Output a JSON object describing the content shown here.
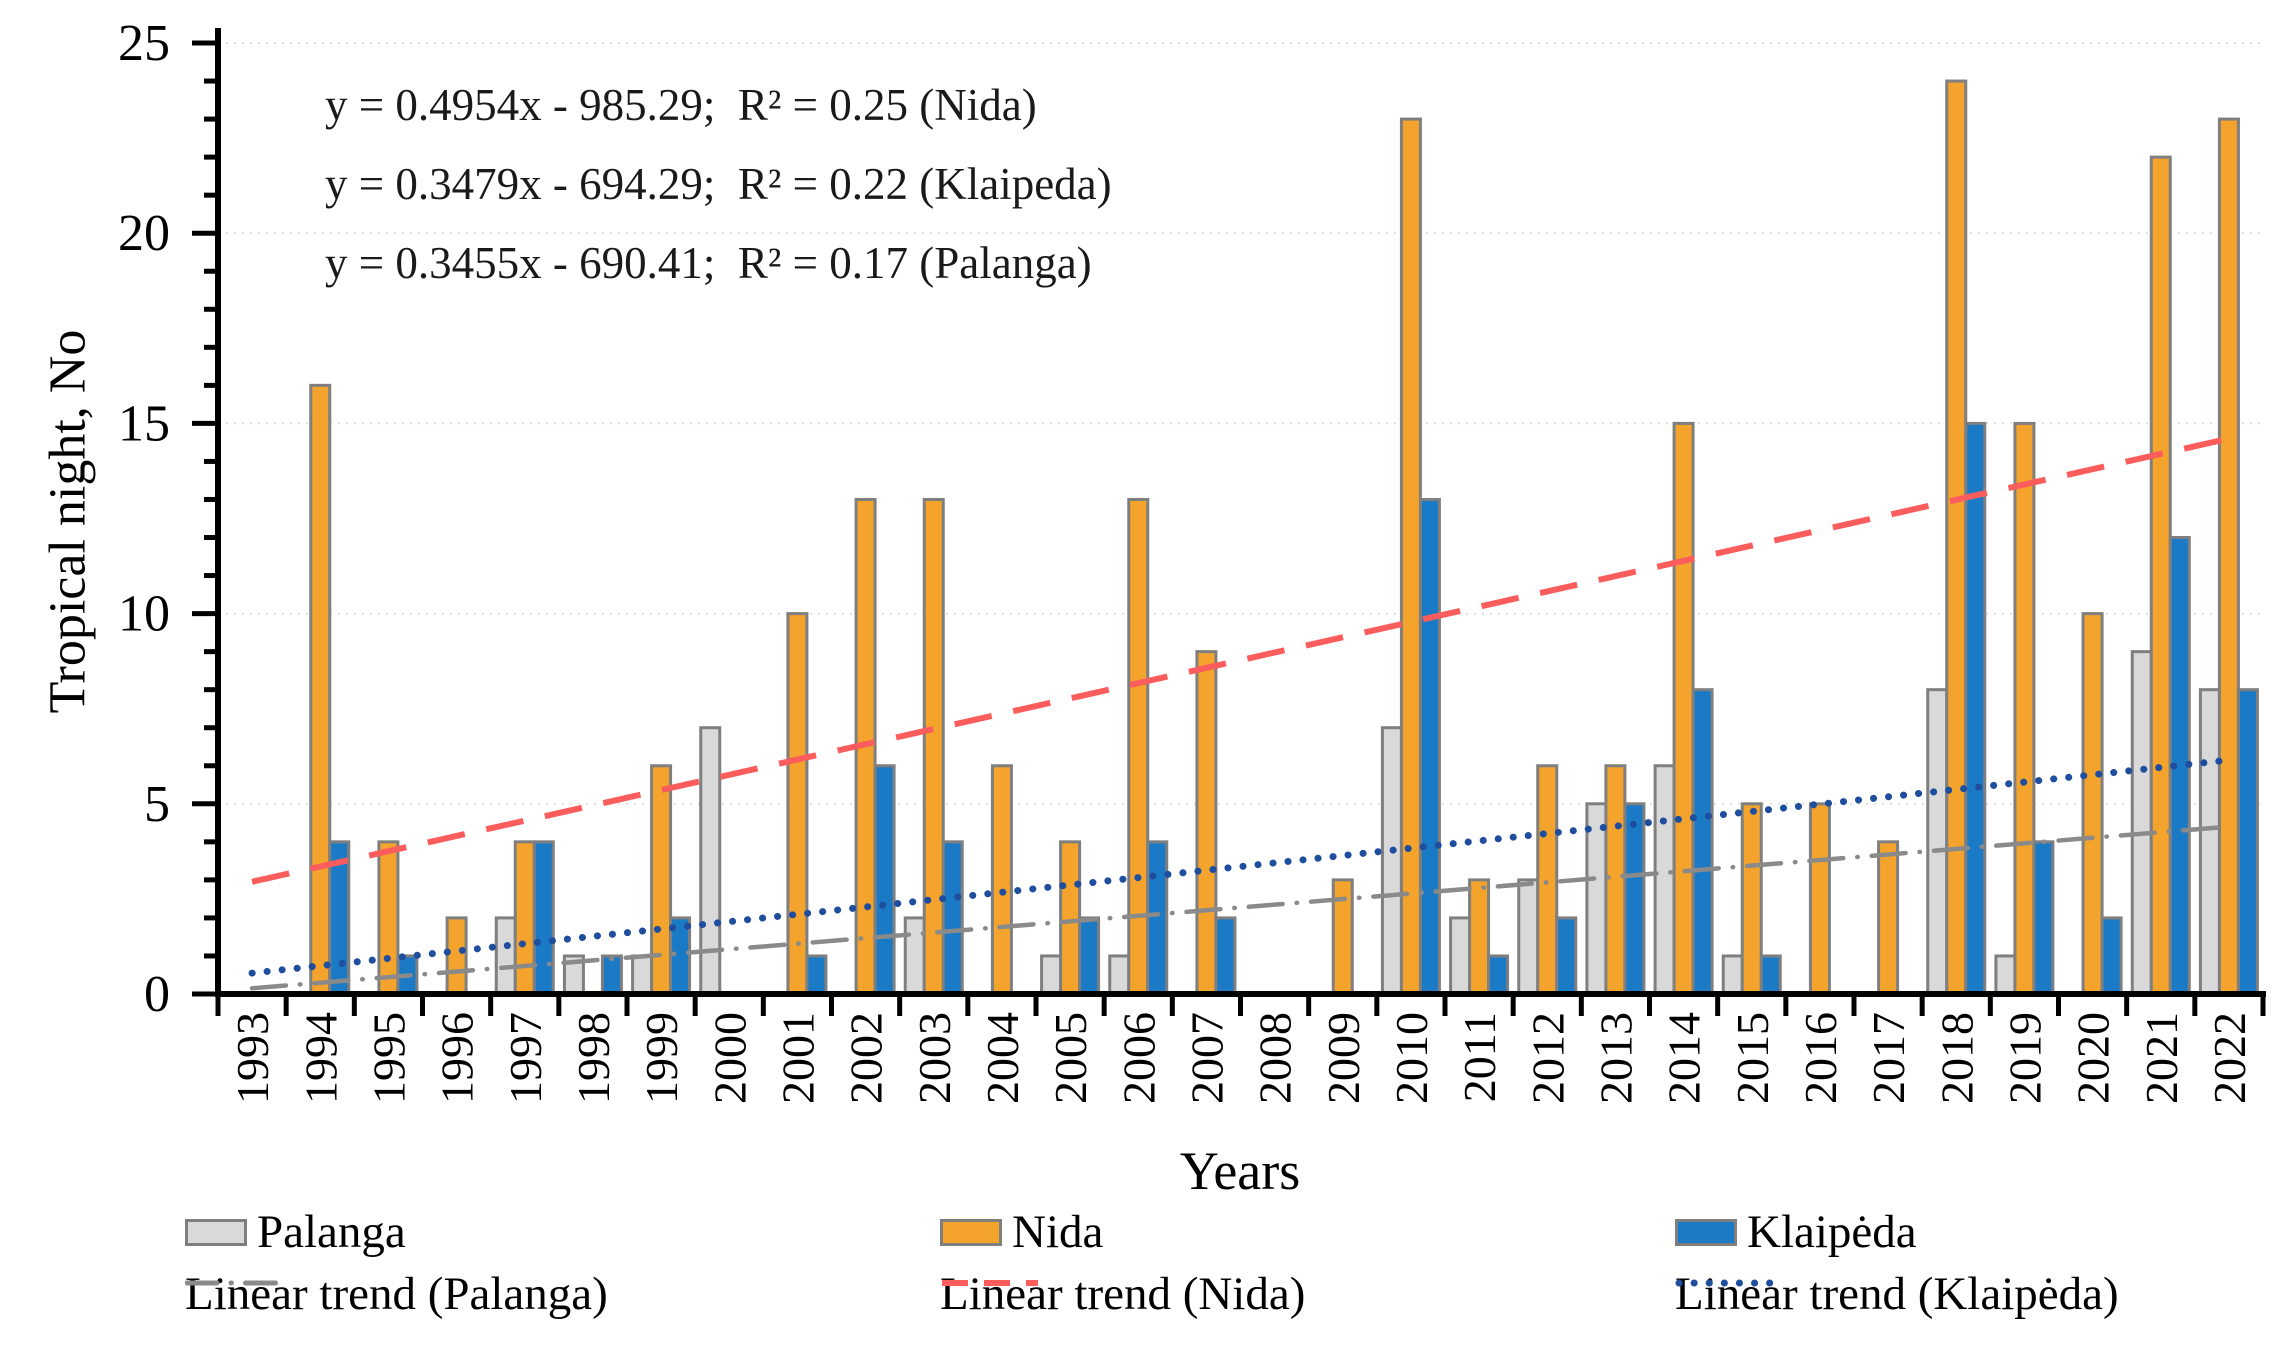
{
  "chart_data": {
    "type": "bar",
    "title": "",
    "xlabel": "Years",
    "ylabel": "Tropical night, No",
    "ylim": [
      0,
      25
    ],
    "y_major_tick_step": 5,
    "y_minor_tick_step": 1,
    "grid": "horizontal-dotted-faint",
    "categories": [
      "1993",
      "1994",
      "1995",
      "1996",
      "1997",
      "1998",
      "1999",
      "2000",
      "2001",
      "2002",
      "2003",
      "2004",
      "2005",
      "2006",
      "2007",
      "2008",
      "2009",
      "2010",
      "2011",
      "2012",
      "2013",
      "2014",
      "2015",
      "2016",
      "2017",
      "2018",
      "2019",
      "2020",
      "2021",
      "2022"
    ],
    "series": [
      {
        "name": "Palanga",
        "color": "#d9d9d9",
        "outline": "#7f7f7f",
        "values": [
          0,
          0,
          0,
          0,
          2,
          1,
          1,
          7,
          0,
          0,
          2,
          0,
          1,
          1,
          0,
          0,
          0,
          7,
          2,
          3,
          5,
          6,
          1,
          0,
          0,
          8,
          1,
          0,
          9,
          8
        ]
      },
      {
        "name": "Nida",
        "color": "#f4a32c",
        "outline": "#7f7f7f",
        "values": [
          0,
          16,
          4,
          2,
          4,
          0,
          6,
          0,
          10,
          13,
          13,
          6,
          4,
          13,
          9,
          0,
          3,
          23,
          3,
          6,
          6,
          15,
          5,
          5,
          4,
          24,
          15,
          10,
          22,
          23
        ]
      },
      {
        "name": "Klaipėda",
        "color": "#1b7ac6",
        "outline": "#7f7f7f",
        "values": [
          0,
          4,
          1,
          0,
          4,
          1,
          2,
          0,
          1,
          6,
          4,
          0,
          2,
          4,
          2,
          0,
          0,
          13,
          1,
          2,
          5,
          8,
          1,
          0,
          0,
          15,
          4,
          2,
          12,
          8
        ]
      }
    ],
    "trend_lines": [
      {
        "name": "Linear trend (Palanga)",
        "style": "dash-dot",
        "color": "#8a8a8a",
        "start_value": 0.15,
        "end_value": 4.4
      },
      {
        "name": "Linear trend (Nida)",
        "style": "dashed",
        "color": "#fb5d5d",
        "start_value": 2.95,
        "end_value": 14.6
      },
      {
        "name": "Linear trend (Klaipėda)",
        "style": "dotted",
        "color": "#1f4e9f",
        "start_value": 0.55,
        "end_value": 6.15
      }
    ],
    "annotations": [
      "y = 0.4954x - 985.29;  R² = 0.25 (Nida)",
      "y = 0.3479x - 694.29;  R² = 0.22 (Klaipeda)",
      "y = 0.3455x - 690.41;  R² = 0.17 (Palanga)"
    ],
    "legend": {
      "position": "bottom",
      "bar_entries": [
        {
          "label": "Palanga",
          "color": "#d9d9d9"
        },
        {
          "label": "Nida",
          "color": "#f4a32c"
        },
        {
          "label": "Klaipėda",
          "color": "#1b7ac6"
        }
      ],
      "line_entries": [
        {
          "label": "Linear trend (Palanga)",
          "style": "dash-dot",
          "color": "#8a8a8a"
        },
        {
          "label": "Linear trend (Nida)",
          "style": "dashed",
          "color": "#fb5d5d"
        },
        {
          "label": "Linear trend (Klaipėda)",
          "style": "dotted",
          "color": "#1f4e9f"
        }
      ]
    }
  }
}
